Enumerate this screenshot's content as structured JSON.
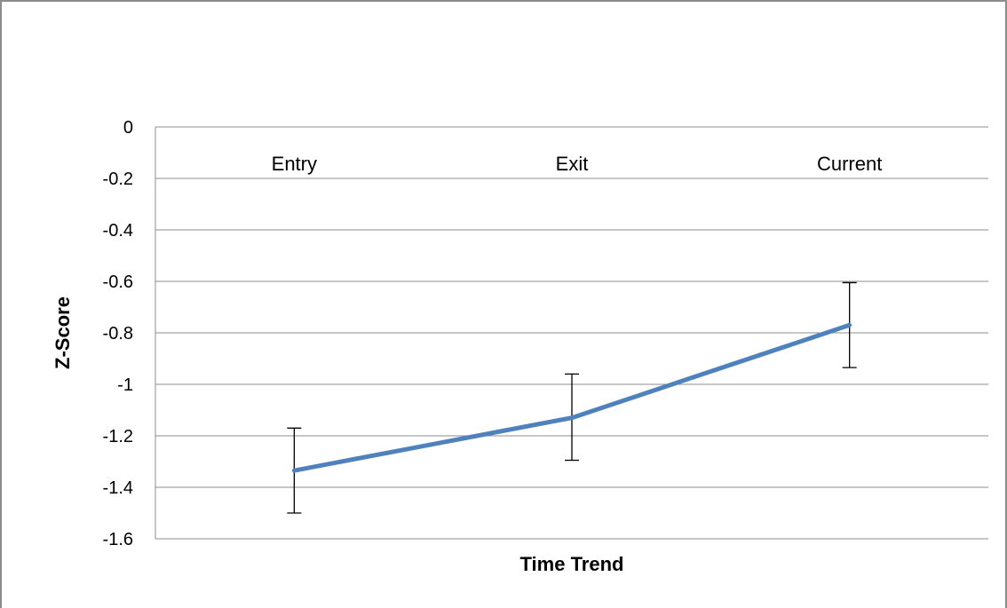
{
  "chart_data": {
    "type": "line",
    "categories": [
      "Entry",
      "Exit",
      "Current"
    ],
    "series": [
      {
        "values": [
          -1.335,
          -1.13,
          -0.77
        ],
        "error_low": [
          -1.5,
          -1.295,
          -0.935
        ],
        "error_high": [
          -1.17,
          -0.96,
          -0.605
        ],
        "color": "#4f81bd"
      }
    ],
    "title": "",
    "xlabel": "Time Trend",
    "ylabel": "Z-Score",
    "ylim": [
      -1.6,
      0
    ],
    "yticks": [
      "0",
      "-0.2",
      "-0.4",
      "-0.6",
      "-0.8",
      "-1",
      "-1.2",
      "-1.4",
      "-1.6"
    ],
    "ytick_values": [
      0,
      -0.2,
      -0.4,
      -0.6,
      -0.8,
      -1,
      -1.2,
      -1.4,
      -1.6
    ],
    "grid": true,
    "legend": "none",
    "colors": {
      "gridline": "#8c8c8c",
      "error_bar": "#000000"
    }
  }
}
